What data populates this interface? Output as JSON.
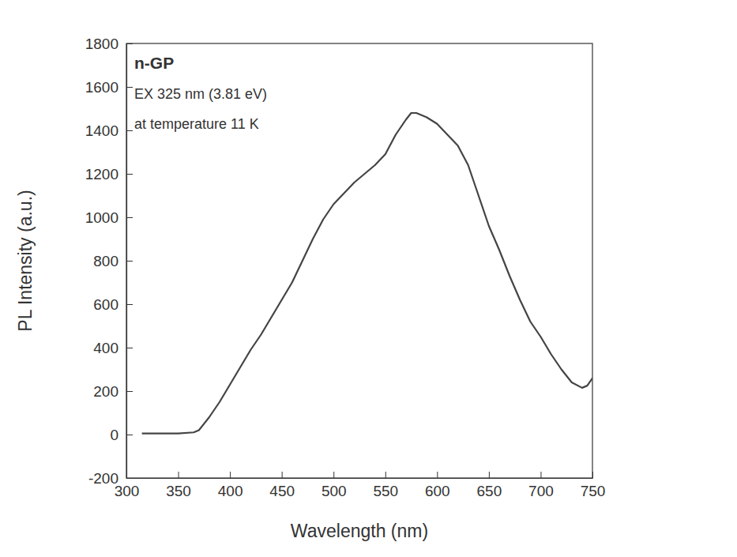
{
  "chart_data": {
    "type": "line",
    "annotations": [
      "n-GP",
      "EX 325 nm (3.81 eV)",
      "at temperature 11 K"
    ],
    "xlabel": "Wavelength (nm)",
    "ylabel": "PL Intensity (a.u.)",
    "x": [
      315,
      330,
      350,
      365,
      370,
      380,
      390,
      400,
      410,
      420,
      430,
      440,
      450,
      460,
      470,
      480,
      490,
      500,
      510,
      520,
      530,
      540,
      550,
      560,
      570,
      575,
      580,
      590,
      600,
      610,
      620,
      630,
      640,
      650,
      660,
      670,
      680,
      690,
      700,
      710,
      720,
      730,
      740,
      745,
      750
    ],
    "values": [
      5,
      5,
      5,
      10,
      20,
      80,
      150,
      230,
      310,
      390,
      460,
      540,
      620,
      700,
      800,
      900,
      990,
      1060,
      1110,
      1160,
      1200,
      1240,
      1290,
      1380,
      1450,
      1480,
      1480,
      1460,
      1430,
      1380,
      1330,
      1240,
      1100,
      960,
      850,
      730,
      620,
      520,
      450,
      370,
      300,
      240,
      215,
      225,
      260
    ],
    "color": "#444444",
    "xlim": [
      300,
      750
    ],
    "ylim": [
      -200,
      1800
    ],
    "xticks": [
      300,
      350,
      400,
      450,
      500,
      550,
      600,
      650,
      700,
      750
    ],
    "yticks": [
      -200,
      0,
      200,
      400,
      600,
      800,
      1000,
      1200,
      1400,
      1600,
      1800
    ],
    "grid": false,
    "line_style": "solid"
  }
}
